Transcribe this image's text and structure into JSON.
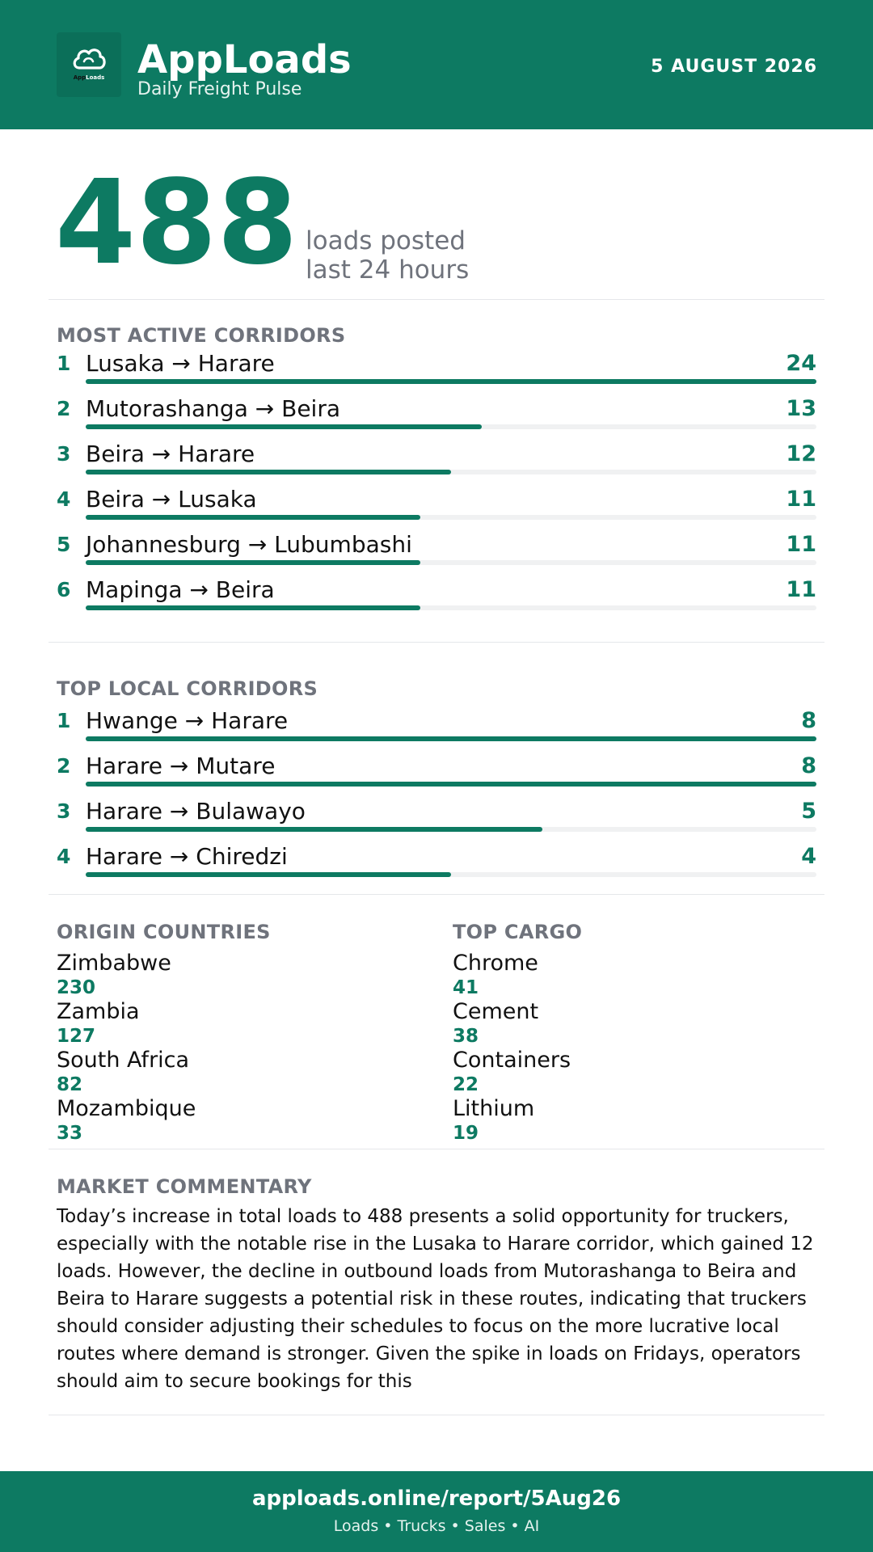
{
  "header": {
    "app_name": "AppLoads",
    "subtitle": "Daily Freight Pulse",
    "date": "5 AUGUST 2026",
    "logo_text_a": "App",
    "logo_text_b": "Loads"
  },
  "hero": {
    "value": "488",
    "caption_line1": "loads posted",
    "caption_line2": "last 24 hours"
  },
  "active_corridors": {
    "title": "MOST ACTIVE CORRIDORS",
    "items": [
      {
        "rank": "1",
        "route": "Lusaka → Harare",
        "count": 24
      },
      {
        "rank": "2",
        "route": "Mutorashanga → Beira",
        "count": 13
      },
      {
        "rank": "3",
        "route": "Beira → Harare",
        "count": 12
      },
      {
        "rank": "4",
        "route": "Beira → Lusaka",
        "count": 11
      },
      {
        "rank": "5",
        "route": "Johannesburg → Lubumbashi",
        "count": 11
      },
      {
        "rank": "6",
        "route": "Mapinga → Beira",
        "count": 11
      }
    ]
  },
  "local_corridors": {
    "title": "TOP LOCAL CORRIDORS",
    "items": [
      {
        "rank": "1",
        "route": "Hwange → Harare",
        "count": 8
      },
      {
        "rank": "2",
        "route": "Harare → Mutare",
        "count": 8
      },
      {
        "rank": "3",
        "route": "Harare → Bulawayo",
        "count": 5
      },
      {
        "rank": "4",
        "route": "Harare → Chiredzi",
        "count": 4
      }
    ]
  },
  "origin_countries": {
    "title": "ORIGIN COUNTRIES",
    "items": [
      {
        "name": "Zimbabwe",
        "value": "230"
      },
      {
        "name": "Zambia",
        "value": "127"
      },
      {
        "name": "South Africa",
        "value": "82"
      },
      {
        "name": "Mozambique",
        "value": "33"
      }
    ]
  },
  "top_cargo": {
    "title": "TOP CARGO",
    "items": [
      {
        "name": "Chrome",
        "value": "41"
      },
      {
        "name": "Cement",
        "value": "38"
      },
      {
        "name": "Containers",
        "value": "22"
      },
      {
        "name": "Lithium",
        "value": "19"
      }
    ]
  },
  "commentary": {
    "title": "MARKET COMMENTARY",
    "text": "Today’s increase in total loads to 488 presents a solid opportunity for truckers, especially with the notable rise in the Lusaka to Harare corridor, which gained 12 loads. However, the decline in outbound loads from Mutorashanga to Beira and Beira to Harare suggests a potential risk in these routes, indicating that truckers should consider adjusting their schedules to focus on the more lucrative local routes where demand is stronger. Given the spike in loads on Fridays, operators should aim to secure bookings for this"
  },
  "footer": {
    "url": "apploads.online/report/5Aug26",
    "tagline": "Loads • Trucks • Sales • AI"
  },
  "colors": {
    "brand": "#0d7a62",
    "muted": "#6f737c",
    "track": "#f0f1f2"
  }
}
